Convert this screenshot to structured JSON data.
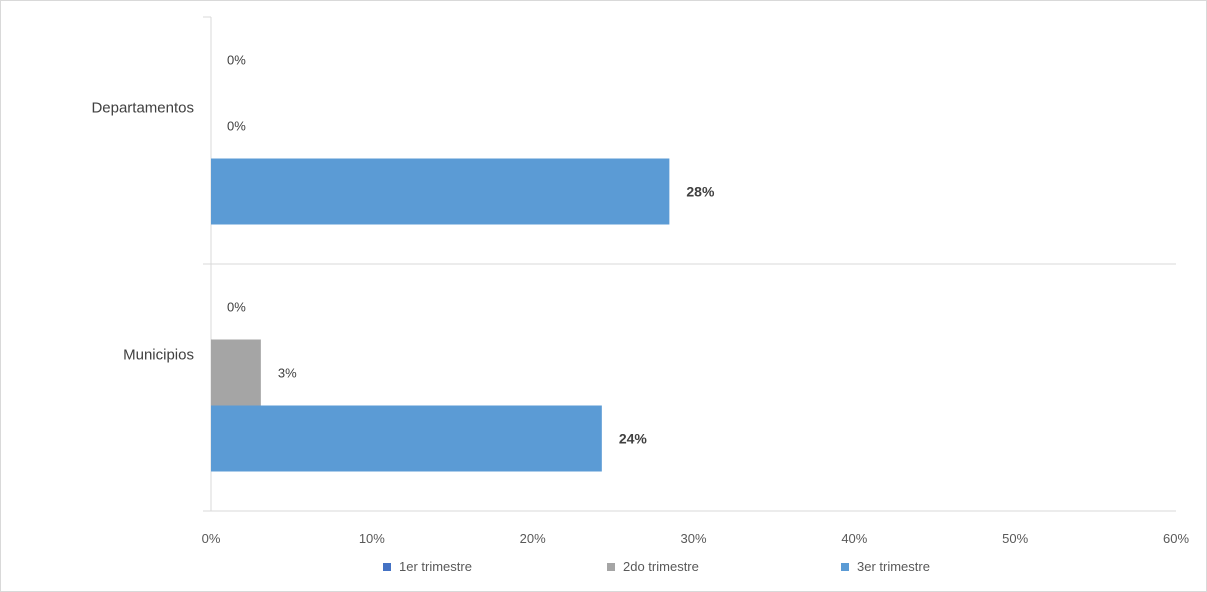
{
  "chart_data": {
    "type": "bar",
    "orientation": "horizontal",
    "categories": [
      "Departamentos",
      "Municipios"
    ],
    "series": [
      {
        "name": "1er trimestre",
        "color": "#4472c4",
        "values": [
          0,
          0
        ],
        "labels": [
          "0%",
          "0%"
        ],
        "bold": false
      },
      {
        "name": "2do trimestre",
        "color": "#a5a5a5",
        "values": [
          0,
          3.1
        ],
        "labels": [
          "0%",
          "3%"
        ],
        "bold": false
      },
      {
        "name": "3er trimestre",
        "color": "#5b9bd5",
        "values": [
          28.5,
          24.3
        ],
        "labels": [
          "28%",
          "24%"
        ],
        "bold": true
      }
    ],
    "xlim": [
      0,
      60
    ],
    "xticks": [
      0,
      10,
      20,
      30,
      40,
      50,
      60
    ],
    "xtick_labels": [
      "0%",
      "10%",
      "20%",
      "30%",
      "40%",
      "50%",
      "60%"
    ],
    "title": "",
    "xlabel": "",
    "ylabel": "",
    "grid": false,
    "legend": "bottom"
  }
}
